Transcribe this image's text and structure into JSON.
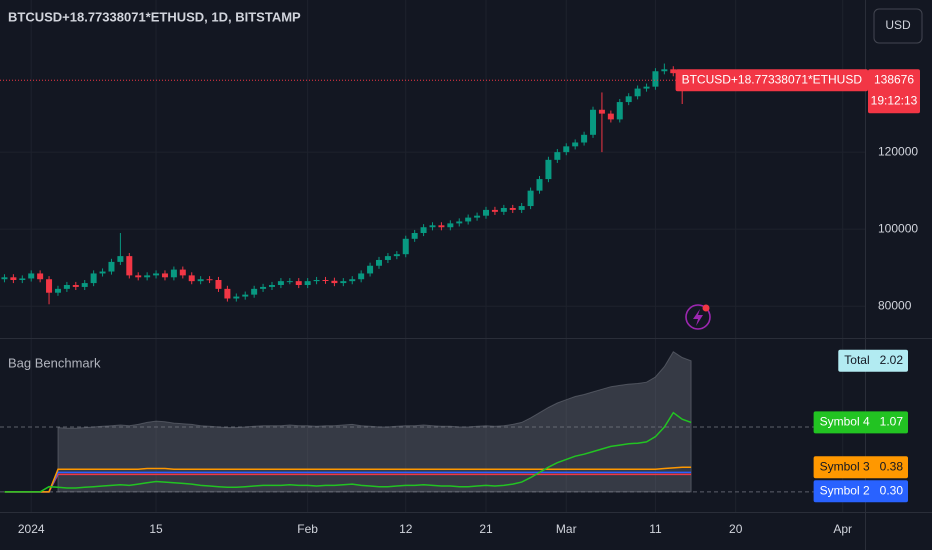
{
  "header": {
    "currency_button": "USD"
  },
  "chart_data": [
    {
      "type": "candlestick",
      "title": "BTCUSD+18.77338071*ETHUSD, 1D, BITSTAMP",
      "last_price_tag": "BTCUSD+18.77338071*ETHUSD",
      "countdown": "19:12:13",
      "up_color": "#089981",
      "down_color": "#f23645",
      "grid": true,
      "x": [
        -3,
        -2,
        -1,
        0,
        1,
        2,
        3,
        4,
        5,
        6,
        7,
        8,
        9,
        10,
        11,
        12,
        13,
        14,
        15,
        16,
        17,
        18,
        19,
        20,
        21,
        22,
        23,
        24,
        25,
        26,
        27,
        28,
        29,
        30,
        31,
        32,
        33,
        34,
        35,
        36,
        37,
        38,
        39,
        40,
        41,
        42,
        43,
        44,
        45,
        46,
        47,
        48,
        49,
        50,
        51,
        52,
        53,
        54,
        55,
        56,
        57,
        58,
        59,
        60,
        61,
        62,
        63,
        64,
        65,
        66,
        67,
        68,
        69,
        70,
        71,
        72,
        73,
        74
      ],
      "open": [
        87000,
        87500,
        86800,
        87200,
        88500,
        87000,
        83500,
        84500,
        85500,
        85000,
        86000,
        88500,
        89000,
        91500,
        93000,
        88000,
        87500,
        88000,
        88500,
        87500,
        89500,
        88000,
        86500,
        87000,
        86800,
        84500,
        82000,
        82500,
        83000,
        84500,
        85000,
        85500,
        86500,
        86500,
        85500,
        86500,
        86800,
        86600,
        86000,
        86500,
        87000,
        88500,
        90500,
        92000,
        93000,
        93500,
        97500,
        99000,
        100500,
        101000,
        100500,
        101500,
        102000,
        103000,
        103500,
        105000,
        104500,
        105500,
        105000,
        106000,
        110000,
        113000,
        118000,
        120000,
        121500,
        122500,
        124500,
        131000,
        130000,
        128500,
        133000,
        134500,
        136500,
        137000,
        141000,
        141500,
        140500,
        137000
      ],
      "high": [
        88300,
        88300,
        88000,
        89300,
        89300,
        87800,
        85300,
        86300,
        86300,
        86800,
        89300,
        89800,
        92300,
        99000,
        93800,
        88800,
        88800,
        89300,
        89300,
        90300,
        90300,
        88800,
        87800,
        87800,
        87600,
        85300,
        83300,
        83800,
        85300,
        85800,
        86300,
        87300,
        87300,
        87300,
        87300,
        87600,
        87600,
        87400,
        87300,
        87800,
        89300,
        91300,
        92800,
        93800,
        94300,
        98300,
        99800,
        101300,
        101800,
        101800,
        102300,
        102800,
        103800,
        104300,
        105800,
        105800,
        106300,
        106300,
        106800,
        110800,
        113800,
        118800,
        120800,
        122300,
        123300,
        125300,
        131800,
        135500,
        130800,
        133800,
        135300,
        137300,
        137800,
        141800,
        143000,
        142300,
        141300,
        139500
      ],
      "low": [
        86200,
        86000,
        86000,
        86400,
        86200,
        80500,
        82700,
        83700,
        84200,
        84200,
        85200,
        87700,
        88200,
        90700,
        87200,
        86700,
        86700,
        87200,
        86700,
        86700,
        87200,
        85700,
        85700,
        86000,
        83700,
        81200,
        81200,
        81700,
        82200,
        83700,
        84200,
        84700,
        85700,
        84700,
        84700,
        85700,
        85800,
        85200,
        85200,
        85700,
        86200,
        87700,
        89700,
        91200,
        92200,
        92700,
        96700,
        98200,
        99700,
        99700,
        99700,
        100700,
        101200,
        102200,
        102700,
        103700,
        103700,
        104200,
        104200,
        105200,
        109200,
        112200,
        117200,
        119200,
        120700,
        121700,
        123700,
        120000,
        127700,
        127700,
        132200,
        133700,
        135700,
        136200,
        140200,
        139700,
        132500,
        136200
      ],
      "close": [
        87500,
        86800,
        87200,
        88500,
        87000,
        83500,
        84500,
        85500,
        85000,
        86000,
        88500,
        89000,
        91500,
        93000,
        88000,
        87500,
        88000,
        88500,
        87500,
        89500,
        88000,
        86500,
        87000,
        86800,
        84500,
        82000,
        82500,
        83000,
        84500,
        85000,
        85500,
        86500,
        86500,
        85500,
        86500,
        86800,
        86600,
        86000,
        86500,
        87000,
        88500,
        90500,
        92000,
        93000,
        93500,
        97500,
        99000,
        100500,
        101000,
        100500,
        101500,
        102000,
        103000,
        103500,
        105000,
        104500,
        105500,
        105000,
        106000,
        110000,
        113000,
        118000,
        120000,
        121500,
        122500,
        124500,
        131000,
        130000,
        128500,
        133000,
        134500,
        136500,
        137000,
        141000,
        141500,
        140500,
        137000,
        138676
      ],
      "xlim": [
        -3.5,
        93.5
      ],
      "xticks": [
        {
          "value": 0,
          "label": "2024"
        },
        {
          "value": 14,
          "label": "15"
        },
        {
          "value": 31,
          "label": "Feb"
        },
        {
          "value": 42,
          "label": "12"
        },
        {
          "value": 51,
          "label": "21"
        },
        {
          "value": 60,
          "label": "Mar"
        },
        {
          "value": 70,
          "label": "11"
        },
        {
          "value": 79,
          "label": "20"
        },
        {
          "value": 91,
          "label": "Apr"
        }
      ],
      "ylim": [
        72000,
        159500
      ],
      "yticks": [
        80000,
        100000,
        120000
      ]
    },
    {
      "type": "line",
      "title": "Bag Benchmark",
      "x": [
        -3,
        -2,
        -1,
        0,
        1,
        2,
        3,
        4,
        5,
        6,
        7,
        8,
        9,
        10,
        11,
        12,
        13,
        14,
        15,
        16,
        17,
        18,
        19,
        20,
        21,
        22,
        23,
        24,
        25,
        26,
        27,
        28,
        29,
        30,
        31,
        32,
        33,
        34,
        35,
        36,
        37,
        38,
        39,
        40,
        41,
        42,
        43,
        44,
        45,
        46,
        47,
        48,
        49,
        50,
        51,
        52,
        53,
        54,
        55,
        56,
        57,
        58,
        59,
        60,
        61,
        62,
        63,
        64,
        65,
        66,
        67,
        68,
        69,
        70,
        71,
        72,
        73,
        74
      ],
      "xlim": [
        -3.5,
        93.5
      ],
      "ylim": [
        -0.31,
        2.34
      ],
      "hlines": [
        0,
        1
      ],
      "series": [
        {
          "name": "Total",
          "style": "area",
          "color": "#787b86",
          "label_color": "#b2ebf2",
          "last_label": "2.02",
          "values": [
            null,
            null,
            null,
            null,
            null,
            null,
            0.99,
            0.98,
            0.98,
            0.99,
            1.0,
            1.01,
            1.02,
            1.03,
            1.02,
            1.04,
            1.07,
            1.09,
            1.08,
            1.06,
            1.05,
            1.04,
            1.02,
            1.01,
            1.0,
            0.99,
            0.99,
            1.0,
            1.01,
            1.02,
            1.02,
            1.02,
            1.03,
            1.02,
            1.02,
            1.01,
            1.02,
            1.02,
            1.03,
            1.04,
            1.02,
            1.01,
            1.0,
            1.0,
            1.01,
            1.02,
            1.02,
            1.03,
            1.02,
            1.01,
            1.01,
            1.0,
            1.0,
            1.01,
            1.02,
            1.01,
            1.02,
            1.04,
            1.07,
            1.14,
            1.22,
            1.3,
            1.37,
            1.42,
            1.47,
            1.5,
            1.54,
            1.58,
            1.62,
            1.64,
            1.66,
            1.67,
            1.69,
            1.77,
            1.93,
            2.16,
            2.07,
            2.02
          ]
        },
        {
          "name": "Symbol 4",
          "style": "line",
          "color": "#22c322",
          "label_color": "#22c322",
          "last_label": "1.07",
          "values": [
            0,
            0,
            0,
            0,
            0,
            0.08,
            0.07,
            0.06,
            0.06,
            0.07,
            0.08,
            0.09,
            0.1,
            0.11,
            0.1,
            0.12,
            0.14,
            0.16,
            0.15,
            0.14,
            0.13,
            0.12,
            0.1,
            0.09,
            0.08,
            0.07,
            0.07,
            0.08,
            0.09,
            0.1,
            0.1,
            0.1,
            0.11,
            0.1,
            0.1,
            0.09,
            0.1,
            0.1,
            0.11,
            0.12,
            0.1,
            0.09,
            0.08,
            0.08,
            0.09,
            0.1,
            0.1,
            0.11,
            0.1,
            0.09,
            0.09,
            0.08,
            0.08,
            0.09,
            0.1,
            0.09,
            0.1,
            0.12,
            0.15,
            0.22,
            0.3,
            0.38,
            0.45,
            0.5,
            0.55,
            0.58,
            0.62,
            0.66,
            0.7,
            0.72,
            0.74,
            0.75,
            0.77,
            0.85,
            1.0,
            1.22,
            1.12,
            1.07
          ]
        },
        {
          "name": "Symbol 3",
          "style": "line",
          "color": "#ff9800",
          "label_color": "#ff9800",
          "last_label": "0.38",
          "values": [
            0,
            0,
            0,
            0,
            0,
            0,
            0.35,
            0.35,
            0.35,
            0.35,
            0.35,
            0.35,
            0.35,
            0.35,
            0.35,
            0.35,
            0.36,
            0.36,
            0.36,
            0.35,
            0.35,
            0.35,
            0.35,
            0.35,
            0.35,
            0.35,
            0.35,
            0.35,
            0.35,
            0.35,
            0.35,
            0.35,
            0.35,
            0.35,
            0.35,
            0.35,
            0.35,
            0.35,
            0.35,
            0.35,
            0.35,
            0.35,
            0.35,
            0.35,
            0.35,
            0.35,
            0.35,
            0.35,
            0.35,
            0.35,
            0.35,
            0.35,
            0.35,
            0.35,
            0.35,
            0.35,
            0.35,
            0.35,
            0.35,
            0.35,
            0.35,
            0.35,
            0.35,
            0.35,
            0.35,
            0.35,
            0.35,
            0.35,
            0.35,
            0.35,
            0.35,
            0.35,
            0.35,
            0.35,
            0.36,
            0.37,
            0.38,
            0.38
          ]
        },
        {
          "name": "Symbol 2",
          "style": "line",
          "color": "#2962ff",
          "label_color": "#2962ff",
          "last_label": "0.30",
          "values": [
            0,
            0,
            0,
            0,
            0,
            0,
            0.3,
            0.3,
            0.3,
            0.3,
            0.3,
            0.3,
            0.3,
            0.3,
            0.3,
            0.3,
            0.3,
            0.3,
            0.3,
            0.3,
            0.3,
            0.3,
            0.3,
            0.3,
            0.3,
            0.3,
            0.3,
            0.3,
            0.3,
            0.3,
            0.3,
            0.3,
            0.3,
            0.3,
            0.3,
            0.3,
            0.3,
            0.3,
            0.3,
            0.3,
            0.3,
            0.3,
            0.3,
            0.3,
            0.3,
            0.3,
            0.3,
            0.3,
            0.3,
            0.3,
            0.3,
            0.3,
            0.3,
            0.3,
            0.3,
            0.3,
            0.3,
            0.3,
            0.3,
            0.3,
            0.3,
            0.3,
            0.3,
            0.3,
            0.3,
            0.3,
            0.3,
            0.3,
            0.3,
            0.3,
            0.3,
            0.3,
            0.3,
            0.3,
            0.3,
            0.3,
            0.3,
            0.3
          ]
        },
        {
          "style": "line",
          "color": "#f23645",
          "values": [
            0,
            0,
            0,
            0,
            0,
            0,
            0.27,
            0.27,
            0.27,
            0.27,
            0.27,
            0.27,
            0.27,
            0.27,
            0.27,
            0.27,
            0.27,
            0.27,
            0.27,
            0.27,
            0.27,
            0.27,
            0.27,
            0.27,
            0.27,
            0.27,
            0.27,
            0.27,
            0.27,
            0.27,
            0.27,
            0.27,
            0.27,
            0.27,
            0.27,
            0.27,
            0.27,
            0.27,
            0.27,
            0.27,
            0.27,
            0.27,
            0.27,
            0.27,
            0.27,
            0.27,
            0.27,
            0.27,
            0.27,
            0.27,
            0.27,
            0.27,
            0.27,
            0.27,
            0.27,
            0.27,
            0.27,
            0.27,
            0.27,
            0.27,
            0.27,
            0.27,
            0.27,
            0.27,
            0.27,
            0.27,
            0.27,
            0.27,
            0.27,
            0.27,
            0.27,
            0.27,
            0.27,
            0.27,
            0.27,
            0.27,
            0.27,
            0.27
          ]
        }
      ]
    }
  ]
}
